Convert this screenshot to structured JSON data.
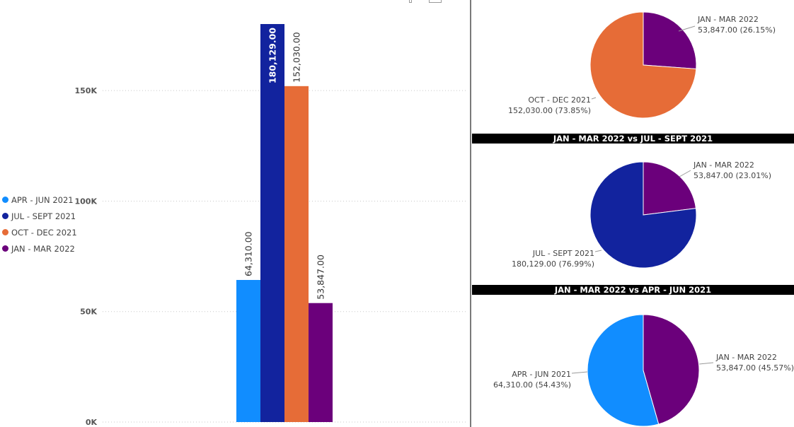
{
  "colors": {
    "apr_jun_2021": "#118dff",
    "jul_sept_2021": "#12239e",
    "oct_dec_2021": "#e66c37",
    "jan_mar_2022": "#6b007b"
  },
  "legend": {
    "items": [
      {
        "label": "APR - JUN 2021",
        "color": "#118dff"
      },
      {
        "label": "JUL - SEPT 2021",
        "color": "#12239e"
      },
      {
        "label": "OCT - DEC 2021",
        "color": "#e66c37"
      },
      {
        "label": "JAN - MAR 2022",
        "color": "#6b007b"
      }
    ]
  },
  "chart_data": [
    {
      "type": "bar",
      "categories": [
        "APR - JUN 2021",
        "JUL - SEPT 2021",
        "OCT - DEC 2021",
        "JAN - MAR 2022"
      ],
      "values": [
        64310,
        180129,
        152030,
        53847
      ],
      "data_labels": [
        "64,310.00",
        "180,129.00",
        "152,030.00",
        "53,847.00"
      ],
      "colors": [
        "#118dff",
        "#12239e",
        "#e66c37",
        "#6b007b"
      ],
      "yticks": [
        0,
        50000,
        100000,
        150000
      ],
      "ytick_labels": [
        "0K",
        "50K",
        "100K",
        "150K"
      ],
      "ylim": [
        0,
        180129
      ],
      "grid": true,
      "legend_position": "left"
    },
    {
      "type": "pie",
      "title": "",
      "slices": [
        {
          "label": "JAN - MAR 2022",
          "value": 53847,
          "display": "53,847.00 (26.15%)",
          "color": "#6b007b"
        },
        {
          "label": "OCT - DEC 2021",
          "value": 152030,
          "display": "152,030.00 (73.85%)",
          "color": "#e66c37"
        }
      ]
    },
    {
      "type": "pie",
      "title": "JAN - MAR 2022 vs JUL - SEPT 2021",
      "slices": [
        {
          "label": "JAN - MAR 2022",
          "value": 53847,
          "display": "53,847.00 (23.01%)",
          "color": "#6b007b"
        },
        {
          "label": "JUL - SEPT 2021",
          "value": 180129,
          "display": "180,129.00 (76.99%)",
          "color": "#12239e"
        }
      ]
    },
    {
      "type": "pie",
      "title": "JAN - MAR 2022 vs APR - JUN 2021",
      "slices": [
        {
          "label": "JAN - MAR 2022",
          "value": 53847,
          "display": "53,847.00 (45.57%)",
          "color": "#6b007b"
        },
        {
          "label": "APR - JUN 2021",
          "value": 64310,
          "display": "64,310.00 (54.43%)",
          "color": "#118dff"
        }
      ]
    }
  ]
}
